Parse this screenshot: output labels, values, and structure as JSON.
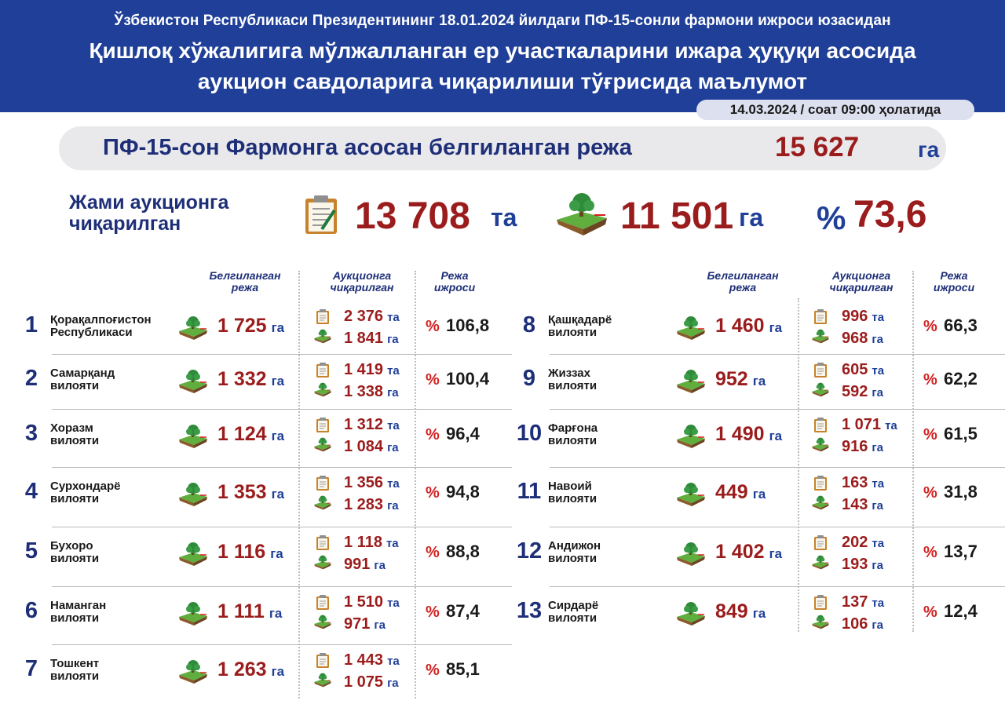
{
  "header": {
    "subtitle": "Ўзбекистон Республикаси Президентининг 18.01.2024 йилдаги ПФ-15-сонли фармони ижроси юзасидан",
    "title_line1": "Қишлоқ хўжалигига мўлжалланган ер участкаларини ижара ҳуқуқи асосида",
    "title_line2": "аукцион савдоларига чиқарилиши тўғрисида маълумот",
    "date": "14.03.2024 / соат 09:00 ҳолатида"
  },
  "plan": {
    "label": "ПФ-15-сон Фармонга асосан белгиланган режа",
    "value": "15 627",
    "unit": "га"
  },
  "totals": {
    "label_line1": "Жами аукционга",
    "label_line2": "чиқарилган",
    "plots": "13 708",
    "plots_unit": "та",
    "area": "11 501",
    "area_unit": "га",
    "percent_sign": "%",
    "percent": "73,6"
  },
  "columns": {
    "plan": [
      "Белгиланган",
      "режа"
    ],
    "auction": [
      "Аукционга",
      "чиқарилган"
    ],
    "exec": [
      "Режа",
      "ижроси"
    ]
  },
  "units": {
    "ha": "га",
    "pcs": "та",
    "pct": "%"
  },
  "icons": {
    "clipboard": "clipboard-icon",
    "land": "land-plot-icon"
  },
  "regions": [
    {
      "n": "1",
      "name1": "Қорақалпоғистон",
      "name2": "Республикаси",
      "plan": "1 725",
      "plots": "2 376",
      "area": "1 841",
      "pct": "106,8"
    },
    {
      "n": "2",
      "name1": "Самарқанд",
      "name2": "вилояти",
      "plan": "1 332",
      "plots": "1 419",
      "area": "1 338",
      "pct": "100,4"
    },
    {
      "n": "3",
      "name1": "Хоразм",
      "name2": "вилояти",
      "plan": "1 124",
      "plots": "1 312",
      "area": "1 084",
      "pct": "96,4"
    },
    {
      "n": "4",
      "name1": "Сурхондарё",
      "name2": "вилояти",
      "plan": "1 353",
      "plots": "1 356",
      "area": "1 283",
      "pct": "94,8"
    },
    {
      "n": "5",
      "name1": "Бухоро",
      "name2": "вилояти",
      "plan": "1 116",
      "plots": "1 118",
      "area": "991",
      "pct": "88,8"
    },
    {
      "n": "6",
      "name1": "Наманган",
      "name2": "вилояти",
      "plan": "1 111",
      "plots": "1 510",
      "area": "971",
      "pct": "87,4"
    },
    {
      "n": "7",
      "name1": "Тошкент",
      "name2": "вилояти",
      "plan": "1 263",
      "plots": "1 443",
      "area": "1 075",
      "pct": "85,1"
    },
    {
      "n": "8",
      "name1": "Қашқадарё",
      "name2": "вилояти",
      "plan": "1 460",
      "plots": "996",
      "area": "968",
      "pct": "66,3"
    },
    {
      "n": "9",
      "name1": "Жиззах",
      "name2": "вилояти",
      "plan": "952",
      "plots": "605",
      "area": "592",
      "pct": "62,2"
    },
    {
      "n": "10",
      "name1": "Фарғона",
      "name2": "вилояти",
      "plan": "1 490",
      "plots": "1 071",
      "area": "916",
      "pct": "61,5"
    },
    {
      "n": "11",
      "name1": "Навоий",
      "name2": "вилояти",
      "plan": "449",
      "plots": "163",
      "area": "143",
      "pct": "31,8"
    },
    {
      "n": "12",
      "name1": "Андижон",
      "name2": "вилояти",
      "plan": "1 402",
      "plots": "202",
      "area": "193",
      "pct": "13,7"
    },
    {
      "n": "13",
      "name1": "Сирдарё",
      "name2": "вилояти",
      "plan": "849",
      "plots": "137",
      "area": "106",
      "pct": "12,4"
    }
  ]
}
